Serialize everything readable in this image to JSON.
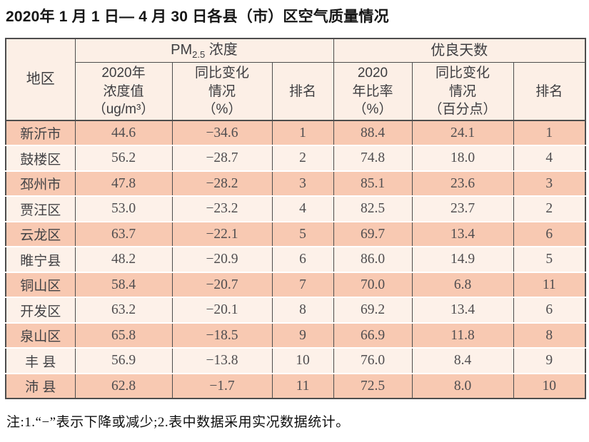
{
  "title": "2020年 1 月 1 日— 4 月 30 日各县（市）区空气质量情况",
  "table": {
    "header": {
      "region": "地区",
      "pm25_group": {
        "prefix": "PM",
        "sub": "2.5",
        "suffix": " 浓度"
      },
      "good_days_group": "优良天数",
      "pm_value": "2020年\n浓度值\n（ug/m³）",
      "pm_change": "同比变化\n情况\n（%）",
      "pm_rank": "排名",
      "ratio": "2020\n年比率\n（%）",
      "ratio_change": "同比变化\n情况\n（百分点）",
      "ratio_rank": "排名"
    },
    "row_keys": [
      "region",
      "pm_value",
      "pm_change",
      "pm_rank",
      "ratio",
      "ratio_change",
      "ratio_rank"
    ],
    "rows": [
      {
        "region": "新沂市",
        "pm_value": "44.6",
        "pm_change": "−34.6",
        "pm_rank": "1",
        "ratio": "88.4",
        "ratio_change": "24.1",
        "ratio_rank": "1"
      },
      {
        "region": "鼓楼区",
        "pm_value": "56.2",
        "pm_change": "−28.7",
        "pm_rank": "2",
        "ratio": "74.8",
        "ratio_change": "18.0",
        "ratio_rank": "4"
      },
      {
        "region": "邳州市",
        "pm_value": "47.8",
        "pm_change": "−28.2",
        "pm_rank": "3",
        "ratio": "85.1",
        "ratio_change": "23.6",
        "ratio_rank": "3"
      },
      {
        "region": "贾汪区",
        "pm_value": "53.0",
        "pm_change": "−23.2",
        "pm_rank": "4",
        "ratio": "82.5",
        "ratio_change": "23.7",
        "ratio_rank": "2"
      },
      {
        "region": "云龙区",
        "pm_value": "63.7",
        "pm_change": "−22.1",
        "pm_rank": "5",
        "ratio": "69.7",
        "ratio_change": "13.4",
        "ratio_rank": "6"
      },
      {
        "region": "睢宁县",
        "pm_value": "48.2",
        "pm_change": "−20.9",
        "pm_rank": "6",
        "ratio": "86.0",
        "ratio_change": "14.9",
        "ratio_rank": "5"
      },
      {
        "region": "铜山区",
        "pm_value": "58.4",
        "pm_change": "−20.7",
        "pm_rank": "7",
        "ratio": "70.0",
        "ratio_change": "6.8",
        "ratio_rank": "11"
      },
      {
        "region": "开发区",
        "pm_value": "63.2",
        "pm_change": "−20.1",
        "pm_rank": "8",
        "ratio": "69.2",
        "ratio_change": "13.4",
        "ratio_rank": "6"
      },
      {
        "region": "泉山区",
        "pm_value": "65.8",
        "pm_change": "−18.5",
        "pm_rank": "9",
        "ratio": "66.9",
        "ratio_change": "11.8",
        "ratio_rank": "8"
      },
      {
        "region": "丰 县",
        "pm_value": "56.9",
        "pm_change": "−13.8",
        "pm_rank": "10",
        "ratio": "76.0",
        "ratio_change": "8.4",
        "ratio_rank": "9"
      },
      {
        "region": "沛 县",
        "pm_value": "62.8",
        "pm_change": "−1.7",
        "pm_rank": "11",
        "ratio": "72.5",
        "ratio_change": "8.0",
        "ratio_rank": "10"
      }
    ]
  },
  "footnote": "注:1.“−”表示下降或减少;2.表中数据采用实况数据统计。",
  "colors": {
    "row_salmon": "#f8c9b2",
    "row_light": "#fdf1e9",
    "header_bg": "#fcefe6",
    "border": "#4d4d4d"
  }
}
